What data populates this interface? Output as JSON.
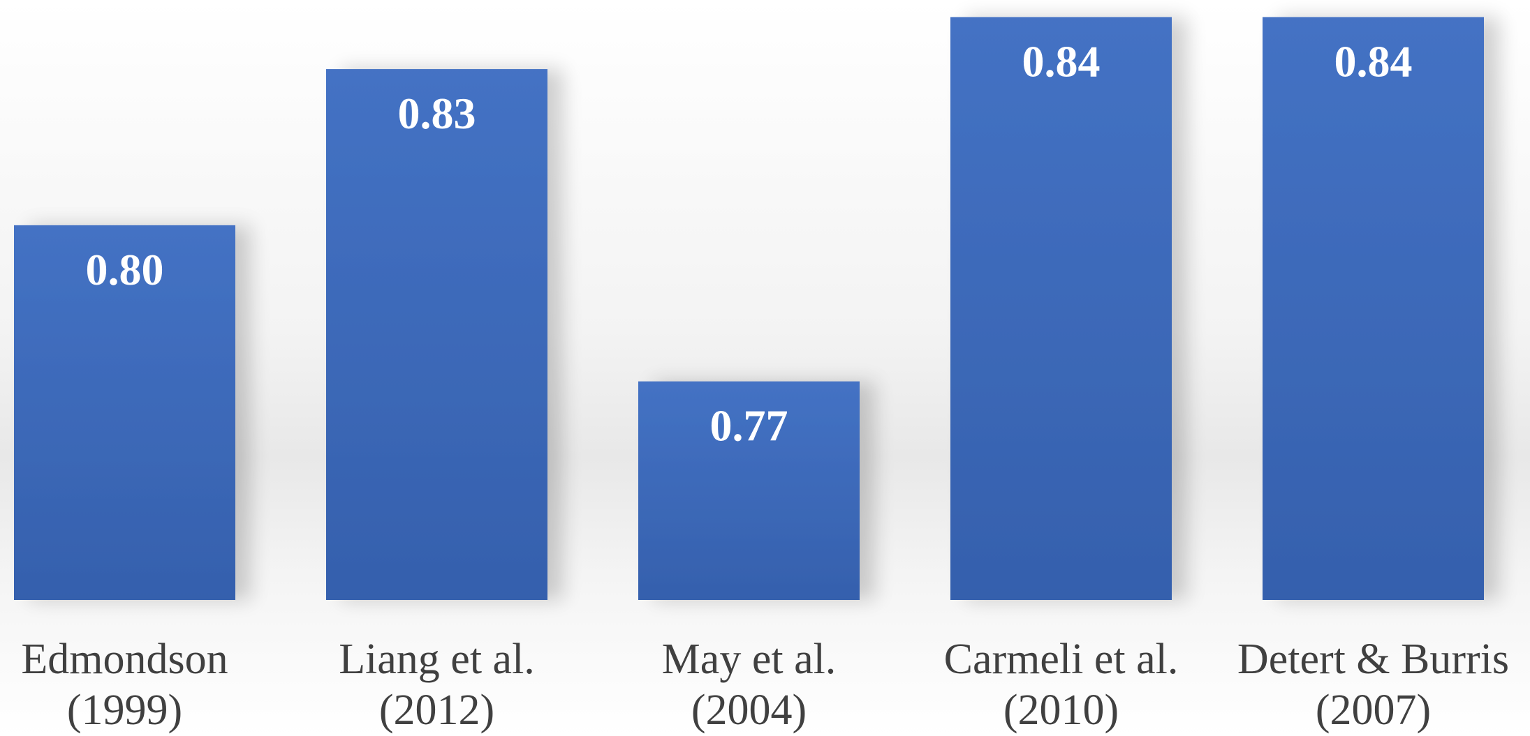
{
  "chart_data": {
    "type": "bar",
    "categories": [
      [
        "Edmondson",
        "(1999)"
      ],
      [
        "Liang et al.",
        "(2012)"
      ],
      [
        "May et al.",
        "(2004)"
      ],
      [
        "Carmeli et al.",
        "(2010)"
      ],
      [
        "Detert & Burris",
        "(2007)"
      ]
    ],
    "values": [
      0.8,
      0.83,
      0.77,
      0.84,
      0.84
    ],
    "value_labels": [
      "0.80",
      "0.83",
      "0.77",
      "0.84",
      "0.84"
    ],
    "title": "",
    "xlabel": "",
    "ylabel": "",
    "ylim": [
      0.728,
      0.841
    ],
    "grid": false,
    "legend": "none",
    "bar_color": "#4472c4",
    "bar_color_dark": "#3560ad",
    "label_color": "#404040",
    "value_label_color": "#ffffff"
  }
}
